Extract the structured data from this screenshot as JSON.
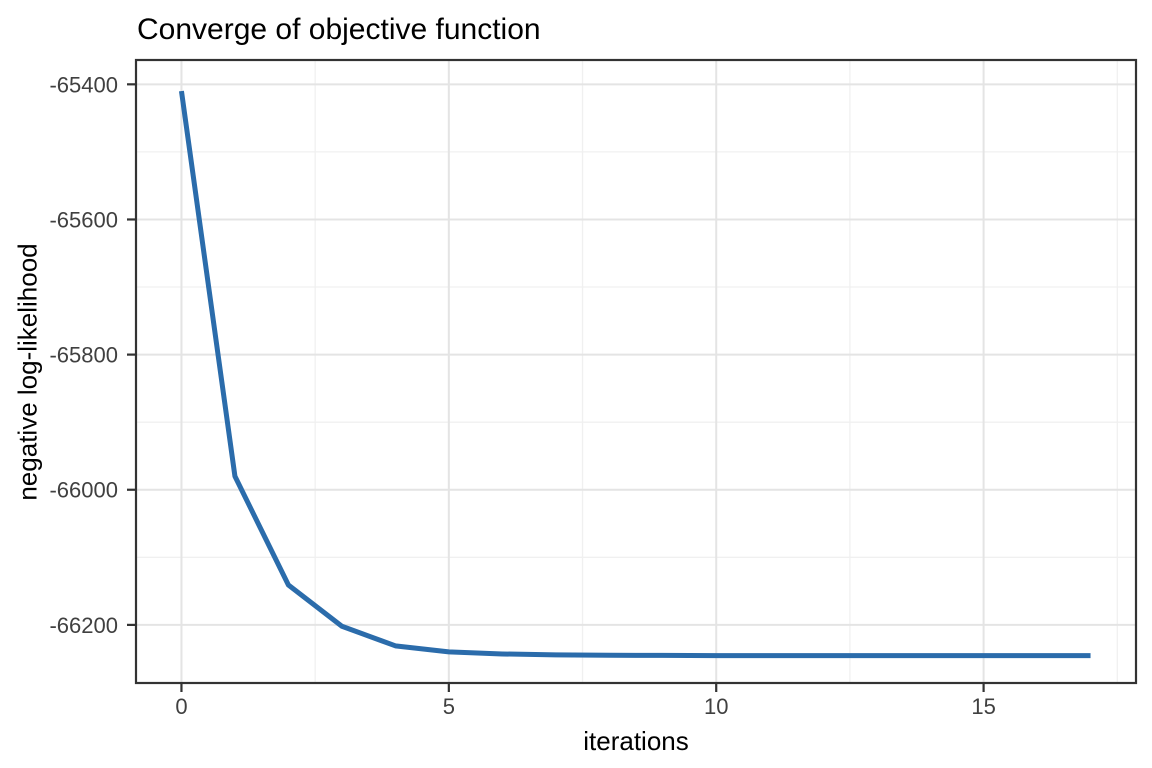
{
  "chart_data": {
    "type": "line",
    "title": "Converge of objective function",
    "xlabel": "iterations",
    "ylabel": "negative log-likelihood",
    "series": [
      {
        "name": "negative log-likelihood",
        "x": [
          0,
          1,
          2,
          3,
          4,
          5,
          6,
          7,
          8,
          9,
          10,
          11,
          12,
          13,
          14,
          15,
          16,
          17
        ],
        "y": [
          -65410,
          -65980,
          -66141,
          -66202,
          -66231,
          -66240,
          -66243,
          -66244.4,
          -66245,
          -66245.2,
          -66245.4,
          -66245.4,
          -66245.5,
          -66245.5,
          -66245.5,
          -66245.5,
          -66245.5,
          -66245.5
        ]
      }
    ],
    "xlim": [
      -0.85,
      17.85
    ],
    "ylim": [
      -66286,
      -65364
    ],
    "x_ticks": [
      0,
      5,
      10,
      15
    ],
    "x_tick_labels": [
      "0",
      "5",
      "10",
      "15"
    ],
    "x_minor_ticks": [
      2.5,
      7.5,
      12.5,
      17.5
    ],
    "y_ticks": [
      -65400,
      -65600,
      -65800,
      -66000,
      -66200
    ],
    "y_tick_labels": [
      "-65400",
      "-65600",
      "-65800",
      "-66000",
      "-66200"
    ],
    "y_minor_ticks": [
      -65500,
      -65700,
      -65900,
      -66100
    ],
    "grid": true,
    "legend_position": "none",
    "colors": {
      "line": "#2b6cab",
      "panel_border": "#333333",
      "grid_major": "#e4e4e4",
      "grid_minor": "#f0f0f0",
      "tick_mark": "#333333",
      "tick_label": "#404040",
      "panel_background": "#ffffff"
    },
    "line_width": 5
  }
}
